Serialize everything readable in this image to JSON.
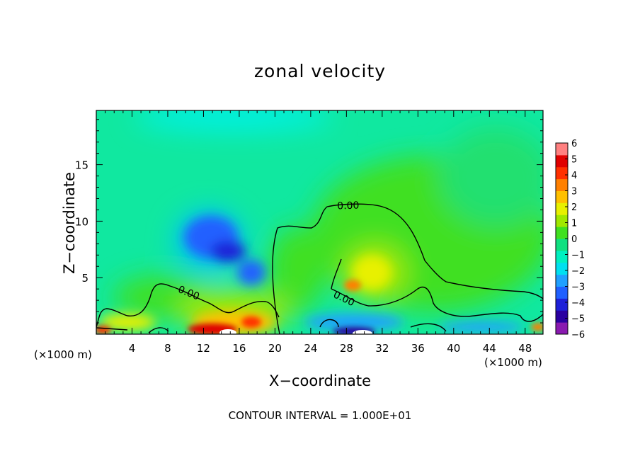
{
  "chart_data": {
    "type": "heatmap",
    "title": "zonal velocity",
    "xlabel": "X−coordinate",
    "ylabel": "Z−coordinate",
    "x_unit": "(×1000 m)",
    "y_unit": "(×1000 m)",
    "xlim": [
      0,
      50
    ],
    "ylim": [
      0,
      19.8
    ],
    "x_ticks": [
      4,
      8,
      12,
      16,
      20,
      24,
      28,
      32,
      36,
      40,
      44,
      48
    ],
    "y_ticks": [
      5,
      10,
      15
    ],
    "colorbar": {
      "ticks": [
        6,
        5,
        4,
        3,
        2,
        1,
        0,
        -1,
        -2,
        -3,
        -4,
        -5,
        -6
      ],
      "tick_labels": [
        "6",
        "5",
        "4",
        "3",
        "2",
        "1",
        "0",
        "−1",
        "−2",
        "−3",
        "−4",
        "−5",
        "−6"
      ],
      "colors": [
        "#8a1ab0",
        "#2a00a0",
        "#1e20d8",
        "#2060ff",
        "#20a0ff",
        "#00e0f0",
        "#00f0c0",
        "#10e080",
        "#40e020",
        "#a0e800",
        "#e8f000",
        "#ffc000",
        "#ff8000",
        "#ff3000",
        "#e00000",
        "#ff8080"
      ]
    },
    "contour_label": "0.00",
    "contour_interval_text": "CONTOUR INTERVAL = 1.000E+01"
  }
}
